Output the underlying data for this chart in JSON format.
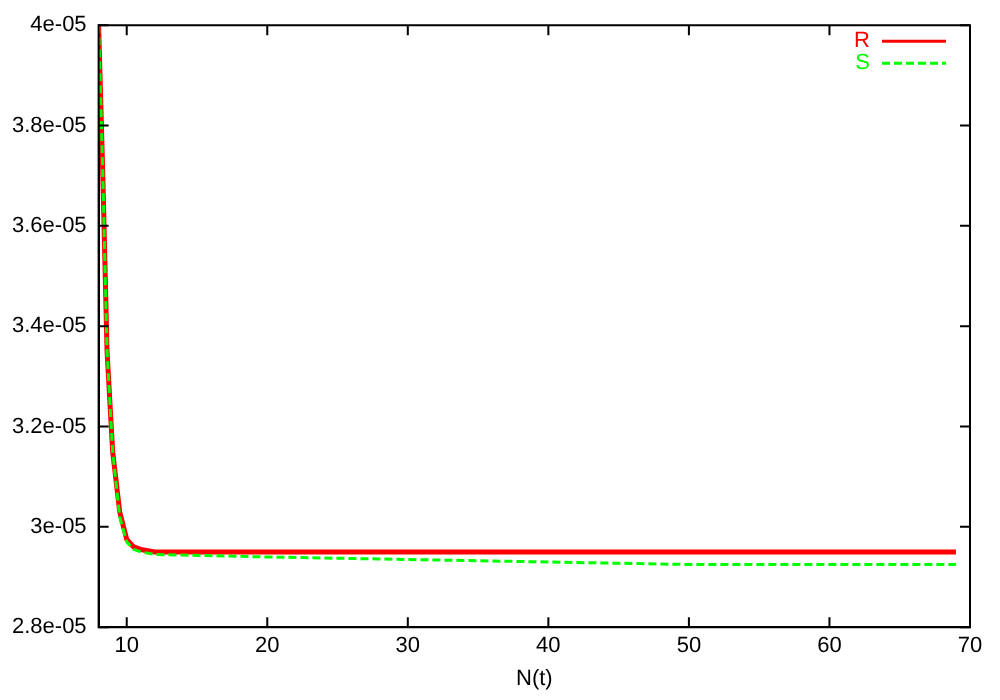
{
  "chart_data": {
    "type": "line",
    "xlabel": "N(t)",
    "xlim": [
      8,
      70
    ],
    "xticks": [
      10,
      20,
      30,
      40,
      50,
      60,
      70
    ],
    "ylim": [
      2.8e-05,
      4e-05
    ],
    "yticks": [
      {
        "value": 2.8e-05,
        "label": "2.8e-05"
      },
      {
        "value": 3e-05,
        "label": "3e-05"
      },
      {
        "value": 3.2e-05,
        "label": "3.2e-05"
      },
      {
        "value": 3.4e-05,
        "label": "3.4e-05"
      },
      {
        "value": 3.6e-05,
        "label": "3.6e-05"
      },
      {
        "value": 3.8e-05,
        "label": "3.8e-05"
      },
      {
        "value": 4e-05,
        "label": "4e-05"
      }
    ],
    "grid": false,
    "legend": "top right",
    "marker": "none",
    "series": [
      {
        "name": "R",
        "color": "#ff0000",
        "line_style": "solid",
        "x": [
          8,
          8.3,
          8.6,
          9,
          9.5,
          10,
          10.5,
          11,
          12,
          20,
          40,
          69
        ],
        "values": [
          4e-05,
          3.7e-05,
          3.35e-05,
          3.15e-05,
          3.03e-05,
          2.975e-05,
          2.96e-05,
          2.955e-05,
          2.95e-05,
          2.95e-05,
          2.95e-05,
          2.95e-05
        ]
      },
      {
        "name": "S",
        "color": "#00ff00",
        "line_style": "dashed",
        "x": [
          8,
          8.3,
          8.6,
          9,
          9.5,
          10,
          10.5,
          11,
          12,
          20,
          30,
          40,
          50,
          69
        ],
        "values": [
          4e-05,
          3.7e-05,
          3.35e-05,
          3.15e-05,
          3.02e-05,
          2.97e-05,
          2.955e-05,
          2.95e-05,
          2.945e-05,
          2.94e-05,
          2.935e-05,
          2.93e-05,
          2.925e-05,
          2.925e-05
        ]
      }
    ]
  }
}
